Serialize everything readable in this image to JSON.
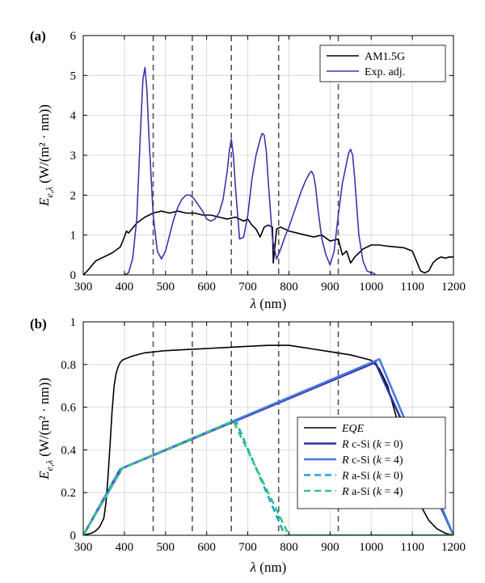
{
  "chart_data": [
    {
      "panel_label": "(a)",
      "type": "line",
      "xlabel": "λ (nm)",
      "ylabel": "E_{e,λ} (W/(m² · nm))",
      "xlim": [
        300,
        1200
      ],
      "ylim": [
        0,
        6
      ],
      "xticks": [
        300,
        400,
        500,
        600,
        700,
        800,
        900,
        1000,
        1100,
        1200
      ],
      "yticks": [
        0,
        1,
        2,
        3,
        4,
        5,
        6
      ],
      "grid": true,
      "legend_position": "top-right",
      "vlines": [
        470,
        565,
        660,
        775,
        920
      ],
      "vline_style": "dashed",
      "vline_color": "#555555",
      "series": [
        {
          "name": "AM1.5G",
          "color": "#000000",
          "style": "solid",
          "x": [
            300,
            310,
            330,
            350,
            370,
            390,
            400,
            405,
            410,
            430,
            450,
            470,
            490,
            510,
            530,
            550,
            570,
            590,
            610,
            630,
            650,
            670,
            690,
            700,
            710,
            720,
            730,
            740,
            750,
            760,
            762,
            770,
            780,
            800,
            820,
            840,
            860,
            880,
            900,
            920,
            930,
            940,
            950,
            960,
            970,
            980,
            990,
            1000,
            1010,
            1020,
            1040,
            1060,
            1080,
            1100,
            1110,
            1120,
            1130,
            1140,
            1150,
            1160,
            1170,
            1180,
            1190,
            1200
          ],
          "y": [
            0,
            0.1,
            0.35,
            0.45,
            0.55,
            0.7,
            0.95,
            1.1,
            1.05,
            1.3,
            1.45,
            1.55,
            1.6,
            1.55,
            1.6,
            1.55,
            1.55,
            1.5,
            1.5,
            1.45,
            1.4,
            1.45,
            1.35,
            1.4,
            1.25,
            1.15,
            0.95,
            1.2,
            1.25,
            1.2,
            0.3,
            1.15,
            1.2,
            1.1,
            1.05,
            1.0,
            0.95,
            1.0,
            0.85,
            0.9,
            0.5,
            0.6,
            0.3,
            0.45,
            0.55,
            0.65,
            0.7,
            0.75,
            0.75,
            0.75,
            0.72,
            0.7,
            0.68,
            0.6,
            0.35,
            0.1,
            0.05,
            0.1,
            0.3,
            0.4,
            0.45,
            0.42,
            0.45,
            0.45
          ]
        },
        {
          "name": "Exp. adj.",
          "color": "#3d35a8",
          "style": "solid",
          "x": [
            400,
            410,
            420,
            430,
            440,
            445,
            450,
            455,
            460,
            470,
            480,
            490,
            500,
            510,
            520,
            530,
            540,
            550,
            560,
            570,
            580,
            590,
            600,
            610,
            620,
            630,
            640,
            650,
            655,
            660,
            665,
            670,
            680,
            690,
            700,
            710,
            720,
            730,
            735,
            740,
            745,
            750,
            760,
            770,
            780,
            790,
            800,
            810,
            820,
            830,
            840,
            850,
            855,
            860,
            865,
            870,
            880,
            890,
            900,
            910,
            920,
            930,
            940,
            945,
            950,
            955,
            960,
            970,
            980,
            990,
            1000,
            1005,
            1010
          ],
          "y": [
            0,
            0.05,
            0.4,
            1.4,
            3.8,
            4.9,
            5.2,
            4.6,
            3.4,
            1.5,
            0.6,
            0.4,
            0.6,
            1.0,
            1.4,
            1.7,
            1.9,
            2.0,
            2.0,
            1.9,
            1.75,
            1.6,
            1.4,
            1.35,
            1.4,
            1.55,
            1.9,
            2.6,
            3.1,
            3.4,
            3.0,
            2.2,
            0.9,
            0.95,
            1.5,
            2.4,
            3.0,
            3.4,
            3.55,
            3.5,
            3.1,
            2.3,
            0.9,
            0.4,
            0.65,
            0.95,
            1.2,
            1.5,
            1.8,
            2.1,
            2.35,
            2.55,
            2.6,
            2.5,
            2.2,
            1.7,
            0.9,
            0.5,
            0.25,
            0.6,
            1.5,
            2.3,
            2.8,
            3.05,
            3.15,
            3.0,
            2.4,
            1.0,
            0.35,
            0.1,
            0.05,
            0.05,
            0.0
          ]
        }
      ]
    },
    {
      "panel_label": "(b)",
      "type": "line",
      "xlabel": "λ (nm)",
      "ylabel": "E_{e,λ} (W/(m² · nm))",
      "xlim": [
        300,
        1200
      ],
      "ylim": [
        0,
        1
      ],
      "xticks": [
        300,
        400,
        500,
        600,
        700,
        800,
        900,
        1000,
        1100,
        1200
      ],
      "yticks": [
        0,
        0.2,
        0.4,
        0.6,
        0.8,
        1
      ],
      "grid": true,
      "legend_position": "bottom-right",
      "vlines": [
        470,
        565,
        660,
        775,
        920
      ],
      "vline_style": "dashed",
      "vline_color": "#555555",
      "series": [
        {
          "name": "EQE",
          "italic": true,
          "color": "#000000",
          "style": "solid",
          "x": [
            300,
            310,
            320,
            330,
            340,
            350,
            355,
            360,
            365,
            370,
            375,
            380,
            385,
            390,
            395,
            400,
            420,
            450,
            500,
            550,
            600,
            650,
            700,
            750,
            800,
            850,
            900,
            950,
            1000,
            1020,
            1040,
            1060,
            1080,
            1100,
            1120,
            1140,
            1160,
            1180,
            1200
          ],
          "y": [
            0,
            0.005,
            0.01,
            0.02,
            0.04,
            0.08,
            0.15,
            0.27,
            0.42,
            0.58,
            0.7,
            0.76,
            0.79,
            0.81,
            0.82,
            0.825,
            0.84,
            0.855,
            0.865,
            0.87,
            0.875,
            0.88,
            0.885,
            0.89,
            0.89,
            0.875,
            0.86,
            0.845,
            0.82,
            0.78,
            0.7,
            0.56,
            0.4,
            0.26,
            0.14,
            0.07,
            0.03,
            0.01,
            0.0
          ]
        },
        {
          "name": "R c-Si (k = 0)",
          "label_parts": [
            "R",
            " c-Si (",
            "k",
            " = 0)"
          ],
          "color": "#2f2fa0",
          "style": "solid",
          "x": [
            300,
            390,
            1010,
            1200
          ],
          "y": [
            0,
            0.31,
            0.81,
            0
          ]
        },
        {
          "name": "R c-Si (k = 4)",
          "label_parts": [
            "R",
            " c-Si (",
            "k",
            " = 4)"
          ],
          "color": "#4a78e0",
          "style": "solid",
          "x": [
            300,
            395,
            1020,
            1200
          ],
          "y": [
            0,
            0.315,
            0.825,
            0
          ]
        },
        {
          "name": "R a-Si (k = 0)",
          "label_parts": [
            "R",
            " a-Si (",
            "k",
            " = 0)"
          ],
          "color": "#1fa5d6",
          "style": "dashed",
          "x": [
            300,
            390,
            670,
            790,
            1200
          ],
          "y": [
            0,
            0.31,
            0.54,
            0,
            0
          ]
        },
        {
          "name": "R a-Si (k = 4)",
          "label_parts": [
            "R",
            " a-Si (",
            "k",
            " = 4)"
          ],
          "color": "#3cc47c",
          "style": "dashed",
          "x": [
            300,
            395,
            665,
            800,
            1200
          ],
          "y": [
            0,
            0.315,
            0.535,
            0,
            0
          ]
        }
      ]
    }
  ]
}
